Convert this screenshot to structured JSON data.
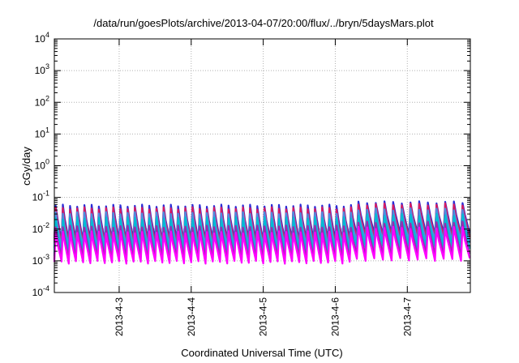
{
  "chart_data": {
    "type": "line",
    "title": "/data/run/goesPlots/archive/2013-04-07/20:00/flux/../bryn/5daysMars.plot",
    "xlabel": "Coordinated Universal Time (UTC)",
    "ylabel": "cGy/day",
    "yscale": "log",
    "ylim_exponents": [
      -4,
      4
    ],
    "y_tick_labels": [
      {
        "base": "10",
        "exp": "-4"
      },
      {
        "base": "10",
        "exp": "-3"
      },
      {
        "base": "10",
        "exp": "-2"
      },
      {
        "base": "10",
        "exp": "-1"
      },
      {
        "base": "10",
        "exp": "0"
      },
      {
        "base": "10",
        "exp": "1"
      },
      {
        "base": "10",
        "exp": "2"
      },
      {
        "base": "10",
        "exp": "3"
      },
      {
        "base": "10",
        "exp": "4"
      }
    ],
    "xlim_days": [
      2.1,
      7.875
    ],
    "x_ticks": [
      {
        "label": "2013-4-3",
        "day": 3
      },
      {
        "label": "2013-4-4",
        "day": 4
      },
      {
        "label": "2013-4-5",
        "day": 5
      },
      {
        "label": "2013-4-6",
        "day": 6
      },
      {
        "label": "2013-4-7",
        "day": 7
      }
    ],
    "grid": true,
    "oscillation": {
      "cycles_per_day": 10,
      "cycles_per_day_after_apr6": 8.3,
      "regime_change_day": 6.25
    },
    "series": [
      {
        "color": "#2b2bd6",
        "peak": 0.055,
        "trough": 0.0045,
        "peak_late": 0.07,
        "trough_late": 0.007
      },
      {
        "color": "#d81b60",
        "peak": 0.045,
        "trough": 0.0035,
        "peak_late": 0.06,
        "trough_late": 0.0055
      },
      {
        "color": "#4a90e2",
        "peak": 0.032,
        "trough": 0.0026,
        "peak_late": 0.042,
        "trough_late": 0.004
      },
      {
        "color": "#00bcd4",
        "peak": 0.022,
        "trough": 0.0016,
        "peak_late": 0.028,
        "trough_late": 0.0026
      },
      {
        "color": "#9c27b0",
        "peak": 0.012,
        "trough": 0.0012,
        "peak_late": 0.016,
        "trough_late": 0.0016
      },
      {
        "color": "#ff00ff",
        "peak": 0.008,
        "trough": 0.0009,
        "peak_late": 0.011,
        "trough_late": 0.0011
      }
    ]
  }
}
